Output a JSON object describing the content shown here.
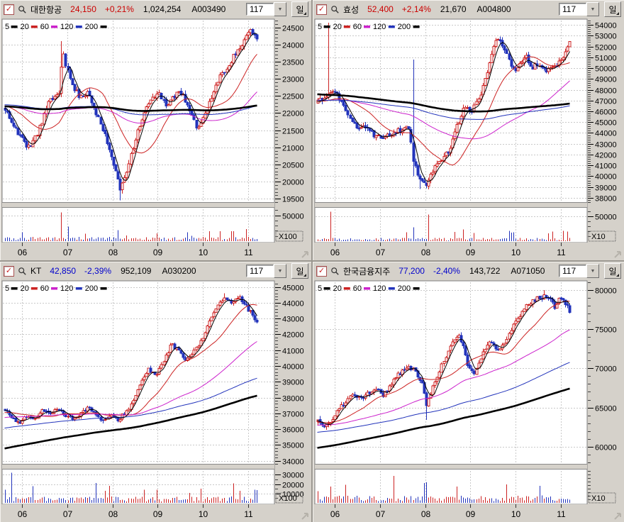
{
  "shared": {
    "up_color": "#cc2222",
    "down_color": "#2233bb",
    "grid_color": "#c9c9c9",
    "legend": [
      {
        "label": "5",
        "color": "#000000"
      },
      {
        "label": "20",
        "color": "#cc2222"
      },
      {
        "label": "60",
        "color": "#cc22cc"
      },
      {
        "label": "120",
        "color": "#2233bb"
      },
      {
        "label": "200",
        "color": "#000000"
      }
    ],
    "months": [
      "06",
      "07",
      "08",
      "09",
      "10",
      "11"
    ],
    "month_t": [
      0.068,
      0.236,
      0.404,
      0.572,
      0.74,
      0.908
    ]
  },
  "panels": [
    {
      "header": {
        "name": "대한항공",
        "price": "24,150",
        "change": "+0,21%",
        "volume": "1,024,254",
        "code": "A003490",
        "bars_value": "117",
        "period_label": "일",
        "direction": "up"
      },
      "chart_data": {
        "type": "candlestick",
        "candle_count": 117,
        "y_ticks": [
          24500,
          24000,
          23500,
          23000,
          22500,
          22000,
          21500,
          21000,
          20500,
          20000,
          19500
        ],
        "y_minor_step": 100,
        "y_min": 19400,
        "y_max": 24700,
        "vol_ticks": [
          50000
        ],
        "vol_minor_step": 10000,
        "vol_max": 62000,
        "vol_unit": "X100",
        "x_ticks": [
          "06",
          "07",
          "08",
          "09",
          "10",
          "11"
        ],
        "trend": [
          [
            0,
            22100
          ],
          [
            0.04,
            21600
          ],
          [
            0.09,
            20950
          ],
          [
            0.13,
            21400
          ],
          [
            0.17,
            22250
          ],
          [
            0.2,
            22500
          ],
          [
            0.215,
            22600
          ],
          [
            0.23,
            23900
          ],
          [
            0.245,
            23300
          ],
          [
            0.27,
            22750
          ],
          [
            0.3,
            22450
          ],
          [
            0.33,
            22650
          ],
          [
            0.36,
            22050
          ],
          [
            0.4,
            21250
          ],
          [
            0.44,
            20300
          ],
          [
            0.455,
            19750
          ],
          [
            0.48,
            20250
          ],
          [
            0.52,
            21350
          ],
          [
            0.55,
            22000
          ],
          [
            0.58,
            22400
          ],
          [
            0.61,
            22550
          ],
          [
            0.64,
            22250
          ],
          [
            0.67,
            22500
          ],
          [
            0.7,
            22600
          ],
          [
            0.73,
            22100
          ],
          [
            0.76,
            21550
          ],
          [
            0.79,
            21900
          ],
          [
            0.82,
            22500
          ],
          [
            0.85,
            23000
          ],
          [
            0.88,
            23350
          ],
          [
            0.91,
            23700
          ],
          [
            0.94,
            24000
          ],
          [
            0.97,
            24400
          ],
          [
            1,
            24150
          ]
        ],
        "pre_trend": [
          [
            -1.8,
            22600
          ],
          [
            -1.3,
            21900
          ],
          [
            -0.8,
            22350
          ],
          [
            -0.4,
            22200
          ],
          [
            -0.1,
            22250
          ]
        ],
        "spikes": [
          {
            "t": 0.225,
            "high": 24100
          },
          {
            "t": 0.455,
            "low": 19450
          }
        ],
        "vol_spikes": [
          [
            0.225,
            56000
          ],
          [
            0.25,
            28000
          ],
          [
            0.07,
            17000
          ],
          [
            0.6,
            15000
          ],
          [
            0.9,
            19000
          ]
        ],
        "noise": 80,
        "vol_base": 7000,
        "seed": 11
      }
    },
    {
      "header": {
        "name": "효성",
        "price": "52,400",
        "change": "+2,14%",
        "volume": "21,670",
        "code": "A004800",
        "bars_value": "117",
        "period_label": "일",
        "direction": "up"
      },
      "chart_data": {
        "type": "candlestick",
        "candle_count": 117,
        "y_ticks": [
          54000,
          53000,
          52000,
          51000,
          50000,
          49000,
          48000,
          47000,
          46000,
          45000,
          44000,
          43000,
          42000,
          41000,
          40000,
          39000,
          38000
        ],
        "y_minor_step": 200,
        "y_min": 37600,
        "y_max": 54400,
        "vol_ticks": [
          50000
        ],
        "vol_minor_step": 10000,
        "vol_max": 65000,
        "vol_unit": "X10",
        "x_ticks": [
          "06",
          "07",
          "08",
          "09",
          "10",
          "11"
        ],
        "trend": [
          [
            0,
            47000
          ],
          [
            0.03,
            47100
          ],
          [
            0.05,
            47600
          ],
          [
            0.07,
            47900
          ],
          [
            0.1,
            46500
          ],
          [
            0.13,
            45200
          ],
          [
            0.16,
            44400
          ],
          [
            0.19,
            44600
          ],
          [
            0.22,
            43900
          ],
          [
            0.25,
            43500
          ],
          [
            0.28,
            43800
          ],
          [
            0.31,
            44200
          ],
          [
            0.34,
            44300
          ],
          [
            0.36,
            44900
          ],
          [
            0.38,
            41500
          ],
          [
            0.4,
            39700
          ],
          [
            0.43,
            39300
          ],
          [
            0.46,
            40600
          ],
          [
            0.49,
            41600
          ],
          [
            0.52,
            42400
          ],
          [
            0.55,
            44500
          ],
          [
            0.58,
            46300
          ],
          [
            0.61,
            46000
          ],
          [
            0.64,
            47200
          ],
          [
            0.67,
            49500
          ],
          [
            0.7,
            52300
          ],
          [
            0.72,
            52900
          ],
          [
            0.74,
            51800
          ],
          [
            0.77,
            50200
          ],
          [
            0.79,
            49700
          ],
          [
            0.81,
            50600
          ],
          [
            0.83,
            51000
          ],
          [
            0.85,
            50000
          ],
          [
            0.87,
            50400
          ],
          [
            0.89,
            49900
          ],
          [
            0.91,
            49700
          ],
          [
            0.93,
            50000
          ],
          [
            0.95,
            50300
          ],
          [
            0.97,
            50800
          ],
          [
            1,
            52400
          ]
        ],
        "pre_trend": [
          [
            -1.8,
            49800
          ],
          [
            -1.3,
            48200
          ],
          [
            -0.8,
            46800
          ],
          [
            -0.4,
            47200
          ],
          [
            -0.1,
            46900
          ]
        ],
        "spikes": [
          {
            "t": 0.045,
            "high": 54200
          },
          {
            "t": 0.375,
            "high": 50800,
            "low": 40000
          },
          {
            "t": 0.405,
            "low": 38800
          }
        ],
        "vol_spikes": [
          [
            0.05,
            60000
          ],
          [
            0.44,
            54000
          ],
          [
            0.38,
            28000
          ],
          [
            0.58,
            24000
          ],
          [
            0.97,
            21000
          ]
        ],
        "noise": 240,
        "vol_base": 6000,
        "seed": 22
      }
    },
    {
      "header": {
        "name": "KT",
        "price": "42,850",
        "change": "-2,39%",
        "volume": "952,109",
        "code": "A030200",
        "bars_value": "117",
        "period_label": "일",
        "direction": "down"
      },
      "chart_data": {
        "type": "candlestick",
        "candle_count": 117,
        "y_ticks": [
          45000,
          44000,
          43000,
          42000,
          41000,
          40000,
          39000,
          38000,
          37000,
          36000,
          35000,
          34000
        ],
        "y_minor_step": 200,
        "y_min": 33800,
        "y_max": 45300,
        "vol_ticks": [
          30000,
          20000,
          10000
        ],
        "vol_minor_step": 5000,
        "vol_max": 34000,
        "vol_unit": "X100",
        "x_ticks": [
          "06",
          "07",
          "08",
          "09",
          "10",
          "11"
        ],
        "trend": [
          [
            0,
            37200
          ],
          [
            0.03,
            36700
          ],
          [
            0.06,
            36400
          ],
          [
            0.09,
            36900
          ],
          [
            0.12,
            36600
          ],
          [
            0.15,
            37200
          ],
          [
            0.18,
            37000
          ],
          [
            0.21,
            37350
          ],
          [
            0.24,
            36900
          ],
          [
            0.27,
            36650
          ],
          [
            0.3,
            37000
          ],
          [
            0.33,
            37400
          ],
          [
            0.36,
            36900
          ],
          [
            0.39,
            36500
          ],
          [
            0.42,
            36800
          ],
          [
            0.45,
            36600
          ],
          [
            0.48,
            37100
          ],
          [
            0.51,
            37800
          ],
          [
            0.54,
            39000
          ],
          [
            0.57,
            39800
          ],
          [
            0.6,
            39300
          ],
          [
            0.63,
            40400
          ],
          [
            0.66,
            41400
          ],
          [
            0.69,
            40900
          ],
          [
            0.72,
            40300
          ],
          [
            0.75,
            40900
          ],
          [
            0.78,
            41600
          ],
          [
            0.81,
            42900
          ],
          [
            0.84,
            43800
          ],
          [
            0.87,
            44300
          ],
          [
            0.9,
            43900
          ],
          [
            0.93,
            44400
          ],
          [
            0.96,
            43700
          ],
          [
            1,
            42850
          ]
        ],
        "pre_trend": [
          [
            -1.8,
            30800
          ],
          [
            -1.3,
            33200
          ],
          [
            -0.8,
            35400
          ],
          [
            -0.4,
            36500
          ],
          [
            -0.1,
            37000
          ]
        ],
        "spikes": [
          {
            "t": 0.87,
            "high": 44600
          }
        ],
        "vol_spikes": [
          [
            0.03,
            32000
          ],
          [
            0.4,
            13000
          ],
          [
            0.55,
            14000
          ],
          [
            0.78,
            15000
          ],
          [
            0.93,
            13000
          ]
        ],
        "noise": 120,
        "vol_base": 6000,
        "seed": 33
      }
    },
    {
      "header": {
        "name": "한국금융지주",
        "price": "77,200",
        "change": "-2,40%",
        "volume": "143,722",
        "code": "A071050",
        "bars_value": "117",
        "period_label": "일",
        "direction": "down"
      },
      "chart_data": {
        "type": "candlestick",
        "candle_count": 117,
        "y_ticks": [
          80000,
          75000,
          70000,
          65000,
          60000
        ],
        "y_minor_step": 1000,
        "y_min": 57800,
        "y_max": 81000,
        "vol_ticks": [],
        "vol_minor_step": 5000,
        "vol_max": 45000,
        "vol_unit": "X10",
        "x_ticks": [
          "06",
          "07",
          "08",
          "09",
          "10",
          "11"
        ],
        "trend": [
          [
            0,
            63300
          ],
          [
            0.03,
            62400
          ],
          [
            0.06,
            63600
          ],
          [
            0.1,
            65400
          ],
          [
            0.14,
            66800
          ],
          [
            0.17,
            66200
          ],
          [
            0.2,
            66800
          ],
          [
            0.23,
            67400
          ],
          [
            0.26,
            66600
          ],
          [
            0.29,
            67800
          ],
          [
            0.32,
            69200
          ],
          [
            0.35,
            70200
          ],
          [
            0.38,
            69800
          ],
          [
            0.41,
            68500
          ],
          [
            0.43,
            65300
          ],
          [
            0.45,
            67000
          ],
          [
            0.48,
            69500
          ],
          [
            0.51,
            71500
          ],
          [
            0.54,
            73500
          ],
          [
            0.56,
            74300
          ],
          [
            0.58,
            72500
          ],
          [
            0.6,
            70000
          ],
          [
            0.62,
            69200
          ],
          [
            0.64,
            70800
          ],
          [
            0.66,
            72300
          ],
          [
            0.68,
            73400
          ],
          [
            0.7,
            73000
          ],
          [
            0.72,
            72000
          ],
          [
            0.74,
            73200
          ],
          [
            0.76,
            74800
          ],
          [
            0.78,
            75600
          ],
          [
            0.8,
            76800
          ],
          [
            0.82,
            77600
          ],
          [
            0.84,
            78300
          ],
          [
            0.86,
            78800
          ],
          [
            0.88,
            79000
          ],
          [
            0.9,
            79400
          ],
          [
            0.92,
            78700
          ],
          [
            0.94,
            77900
          ],
          [
            0.96,
            78900
          ],
          [
            0.98,
            78500
          ],
          [
            1,
            77200
          ]
        ],
        "pre_trend": [
          [
            -1.8,
            53500
          ],
          [
            -1.3,
            57500
          ],
          [
            -0.8,
            61000
          ],
          [
            -0.4,
            62500
          ],
          [
            -0.1,
            63000
          ]
        ],
        "spikes": [
          {
            "t": 0.43,
            "low": 63400
          },
          {
            "t": 0.9,
            "high": 80000
          }
        ],
        "vol_spikes": [
          [
            0.3,
            38000
          ],
          [
            0.42,
            28000
          ],
          [
            0.55,
            23000
          ],
          [
            0.75,
            26000
          ],
          [
            0.88,
            24000
          ]
        ],
        "noise": 300,
        "vol_base": 9000,
        "seed": 44
      }
    }
  ]
}
